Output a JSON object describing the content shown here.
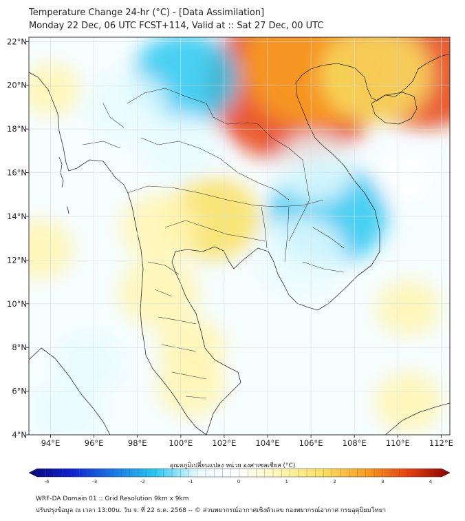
{
  "title": {
    "line1": "Temperature Change 24-hr (°C) - [Data Assimilation]",
    "line2": "Monday 22 Dec, 06 UTC FCST+114, Valid at :: Sat 27 Dec, 00 UTC"
  },
  "map": {
    "lon_range": [
      93,
      112.4
    ],
    "lat_range": [
      4,
      22.2
    ],
    "lon_ticks": [
      {
        "value": 94,
        "label": "94°E"
      },
      {
        "value": 96,
        "label": "96°E"
      },
      {
        "value": 98,
        "label": "98°E"
      },
      {
        "value": 100,
        "label": "100°E"
      },
      {
        "value": 102,
        "label": "102°E"
      },
      {
        "value": 104,
        "label": "104°E"
      },
      {
        "value": 106,
        "label": "106°E"
      },
      {
        "value": 108,
        "label": "108°E"
      },
      {
        "value": 110,
        "label": "110°E"
      },
      {
        "value": 112,
        "label": "112°E"
      }
    ],
    "lat_ticks": [
      {
        "value": 22,
        "label": "22°N"
      },
      {
        "value": 20,
        "label": "20°N"
      },
      {
        "value": 18,
        "label": "18°N"
      },
      {
        "value": 16,
        "label": "16°N"
      },
      {
        "value": 14,
        "label": "14°N"
      },
      {
        "value": 12,
        "label": "12°N"
      },
      {
        "value": 10,
        "label": "10°N"
      },
      {
        "value": 8,
        "label": "8°N"
      },
      {
        "value": 6,
        "label": "6°N"
      },
      {
        "value": 4,
        "label": "4°N"
      }
    ],
    "field_blobs": [
      {
        "lon": 105.2,
        "lat": 20.0,
        "value": 3.2
      },
      {
        "lon": 106.2,
        "lat": 21.0,
        "value": 2.4
      },
      {
        "lon": 111.2,
        "lat": 21.3,
        "value": 2.9
      },
      {
        "lon": 109.0,
        "lat": 20.5,
        "value": 1.6
      },
      {
        "lon": 100.2,
        "lat": 20.3,
        "value": -1.5
      },
      {
        "lon": 97.5,
        "lat": 19.0,
        "value": -0.9
      },
      {
        "lon": 100.0,
        "lat": 17.2,
        "value": -0.8
      },
      {
        "lon": 106.8,
        "lat": 14.1,
        "value": -1.8
      },
      {
        "lon": 105.5,
        "lat": 12.2,
        "value": -1.1
      },
      {
        "lon": 106.2,
        "lat": 16.2,
        "value": -0.8
      },
      {
        "lon": 101.5,
        "lat": 13.9,
        "value": 1.2
      },
      {
        "lon": 99.0,
        "lat": 13.5,
        "value": 0.8
      },
      {
        "lon": 99.0,
        "lat": 10.5,
        "value": 0.9
      },
      {
        "lon": 100.5,
        "lat": 8.0,
        "value": 0.6
      },
      {
        "lon": 100.5,
        "lat": 6.2,
        "value": 0.6
      },
      {
        "lon": 95.8,
        "lat": 7.3,
        "value": -0.6
      },
      {
        "lon": 94.8,
        "lat": 5.0,
        "value": -0.7
      },
      {
        "lon": 93.5,
        "lat": 12.5,
        "value": 0.6
      },
      {
        "lon": 94.0,
        "lat": 19.8,
        "value": 0.4
      },
      {
        "lon": 110.5,
        "lat": 9.8,
        "value": 0.5
      },
      {
        "lon": 110.5,
        "lat": 5.5,
        "value": 0.6
      },
      {
        "lon": 110.3,
        "lat": 15.8,
        "value": 0.3
      }
    ]
  },
  "colorbar": {
    "label": "อุณหภูมิเปลี่ยนแปลง หน่วย องศาเซลเซียส (°C)",
    "min": -4,
    "max": 4,
    "ticks": [
      "-4",
      "-3",
      "-2",
      "-1",
      "0",
      "1",
      "2",
      "3",
      "4"
    ],
    "colors": [
      "#08087a",
      "#1020d0",
      "#1878e8",
      "#28c8f0",
      "#e8fbff",
      "#ffffff",
      "#fff6b0",
      "#f8e060",
      "#f8a020",
      "#e84010",
      "#8a0000"
    ]
  },
  "footer": {
    "line1": "WRF-DA Domain 01 :: Grid Resolution 9km x 9km",
    "line2": "ปรับปรุงข้อมูล ณ เวลา 13:00น. วัน จ. ที่ 22 ธ.ค. 2568 -- © ส่วนพยากรณ์อากาศเชิงตัวเลข กองพยากรณ์อากาศ กรมอุตุนิยมวิทยา"
  }
}
